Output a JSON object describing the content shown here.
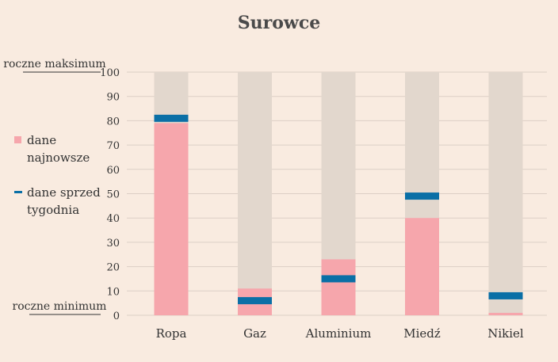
{
  "chart_data": {
    "type": "bar",
    "title": "Surowce",
    "categories": [
      "Ropa",
      "Gaz",
      "Aluminium",
      "Miedź",
      "Nikiel"
    ],
    "series": [
      {
        "name": "dane najnowsze",
        "values": [
          79,
          11,
          23,
          40,
          1
        ]
      },
      {
        "name": "dane sprzed tygodnia",
        "values": [
          81,
          6,
          15,
          49,
          8
        ]
      }
    ],
    "range_background": [
      100,
      100,
      100,
      100,
      100
    ],
    "ylim": [
      0,
      100
    ],
    "yticks": [
      0,
      10,
      20,
      30,
      40,
      50,
      60,
      70,
      80,
      90,
      100
    ],
    "ymax_label": "roczne maksimum",
    "ymin_label": "roczne minimum",
    "legend_position": "left",
    "grid": true
  },
  "colors": {
    "background": "#f9ebe0",
    "range_bar": "#e2d7cd",
    "latest_bar": "#f6a6ac",
    "week_ago_marker": "#0a6fa6",
    "grid": "#dccfc5",
    "text": "#333333"
  }
}
